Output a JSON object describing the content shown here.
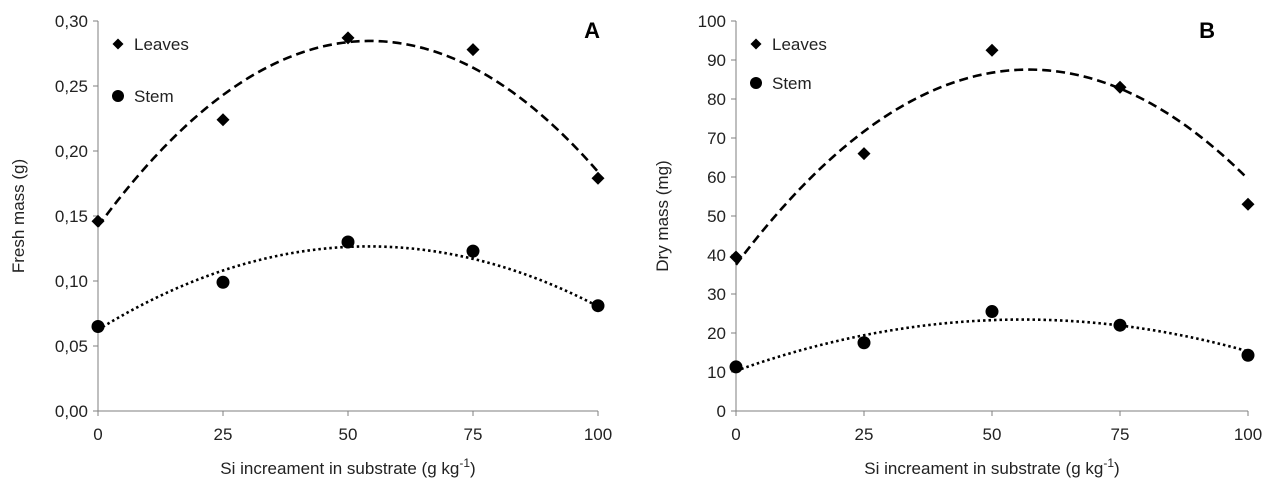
{
  "chart_data": [
    {
      "panel": "A",
      "type": "scatter",
      "ylabel": "Fresh mass (g)",
      "xlabel": "Si increament in substrate (g kg",
      "xlabel_sup": "-1",
      "xlabel_end": ")",
      "x": [
        0,
        25,
        50,
        75,
        100
      ],
      "xticks": [
        "0",
        "25",
        "50",
        "75",
        "100"
      ],
      "xlim": [
        0,
        100
      ],
      "ylim": [
        0,
        0.3
      ],
      "yticks": [
        "0,00",
        "0,05",
        "0,10",
        "0,15",
        "0,20",
        "0,25",
        "0,30"
      ],
      "grid": false,
      "legend_position": "top-left",
      "series": [
        {
          "name": "Leaves",
          "marker": "diamond",
          "values": [
            0.146,
            0.224,
            0.287,
            0.278,
            0.179
          ],
          "fit": {
            "style": "dashed",
            "coefficients": [
              0.142,
              0.00525,
              -4.83e-05
            ]
          }
        },
        {
          "name": "Stem",
          "marker": "circle",
          "values": [
            0.065,
            0.099,
            0.13,
            0.123,
            0.081
          ],
          "fit": {
            "style": "dotted",
            "coefficients": [
              0.0625,
              0.00237,
              -2.19e-05
            ]
          }
        }
      ]
    },
    {
      "panel": "B",
      "type": "scatter",
      "ylabel": "Dry mass (mg)",
      "xlabel": "Si increament in substrate (g kg",
      "xlabel_sup": "-1",
      "xlabel_end": ")",
      "x": [
        0,
        25,
        50,
        75,
        100
      ],
      "xticks": [
        "0",
        "25",
        "50",
        "75",
        "100"
      ],
      "xlim": [
        0,
        100
      ],
      "ylim": [
        0,
        100
      ],
      "yticks": [
        "0",
        "10",
        "20",
        "30",
        "40",
        "50",
        "60",
        "70",
        "80",
        "90",
        "100"
      ],
      "grid": false,
      "legend_position": "top-left",
      "series": [
        {
          "name": "Leaves",
          "marker": "diamond",
          "values": [
            39.5,
            66,
            92.5,
            83,
            53
          ],
          "fit": {
            "style": "dashed",
            "coefficients": [
              37.5,
              1.75,
              -0.0153
            ]
          }
        },
        {
          "name": "Stem",
          "marker": "circle",
          "values": [
            11.3,
            17.5,
            25.5,
            22,
            14.3
          ],
          "fit": {
            "style": "dotted",
            "coefficients": [
              10.3,
              0.47,
              -0.0042
            ]
          }
        }
      ]
    }
  ]
}
